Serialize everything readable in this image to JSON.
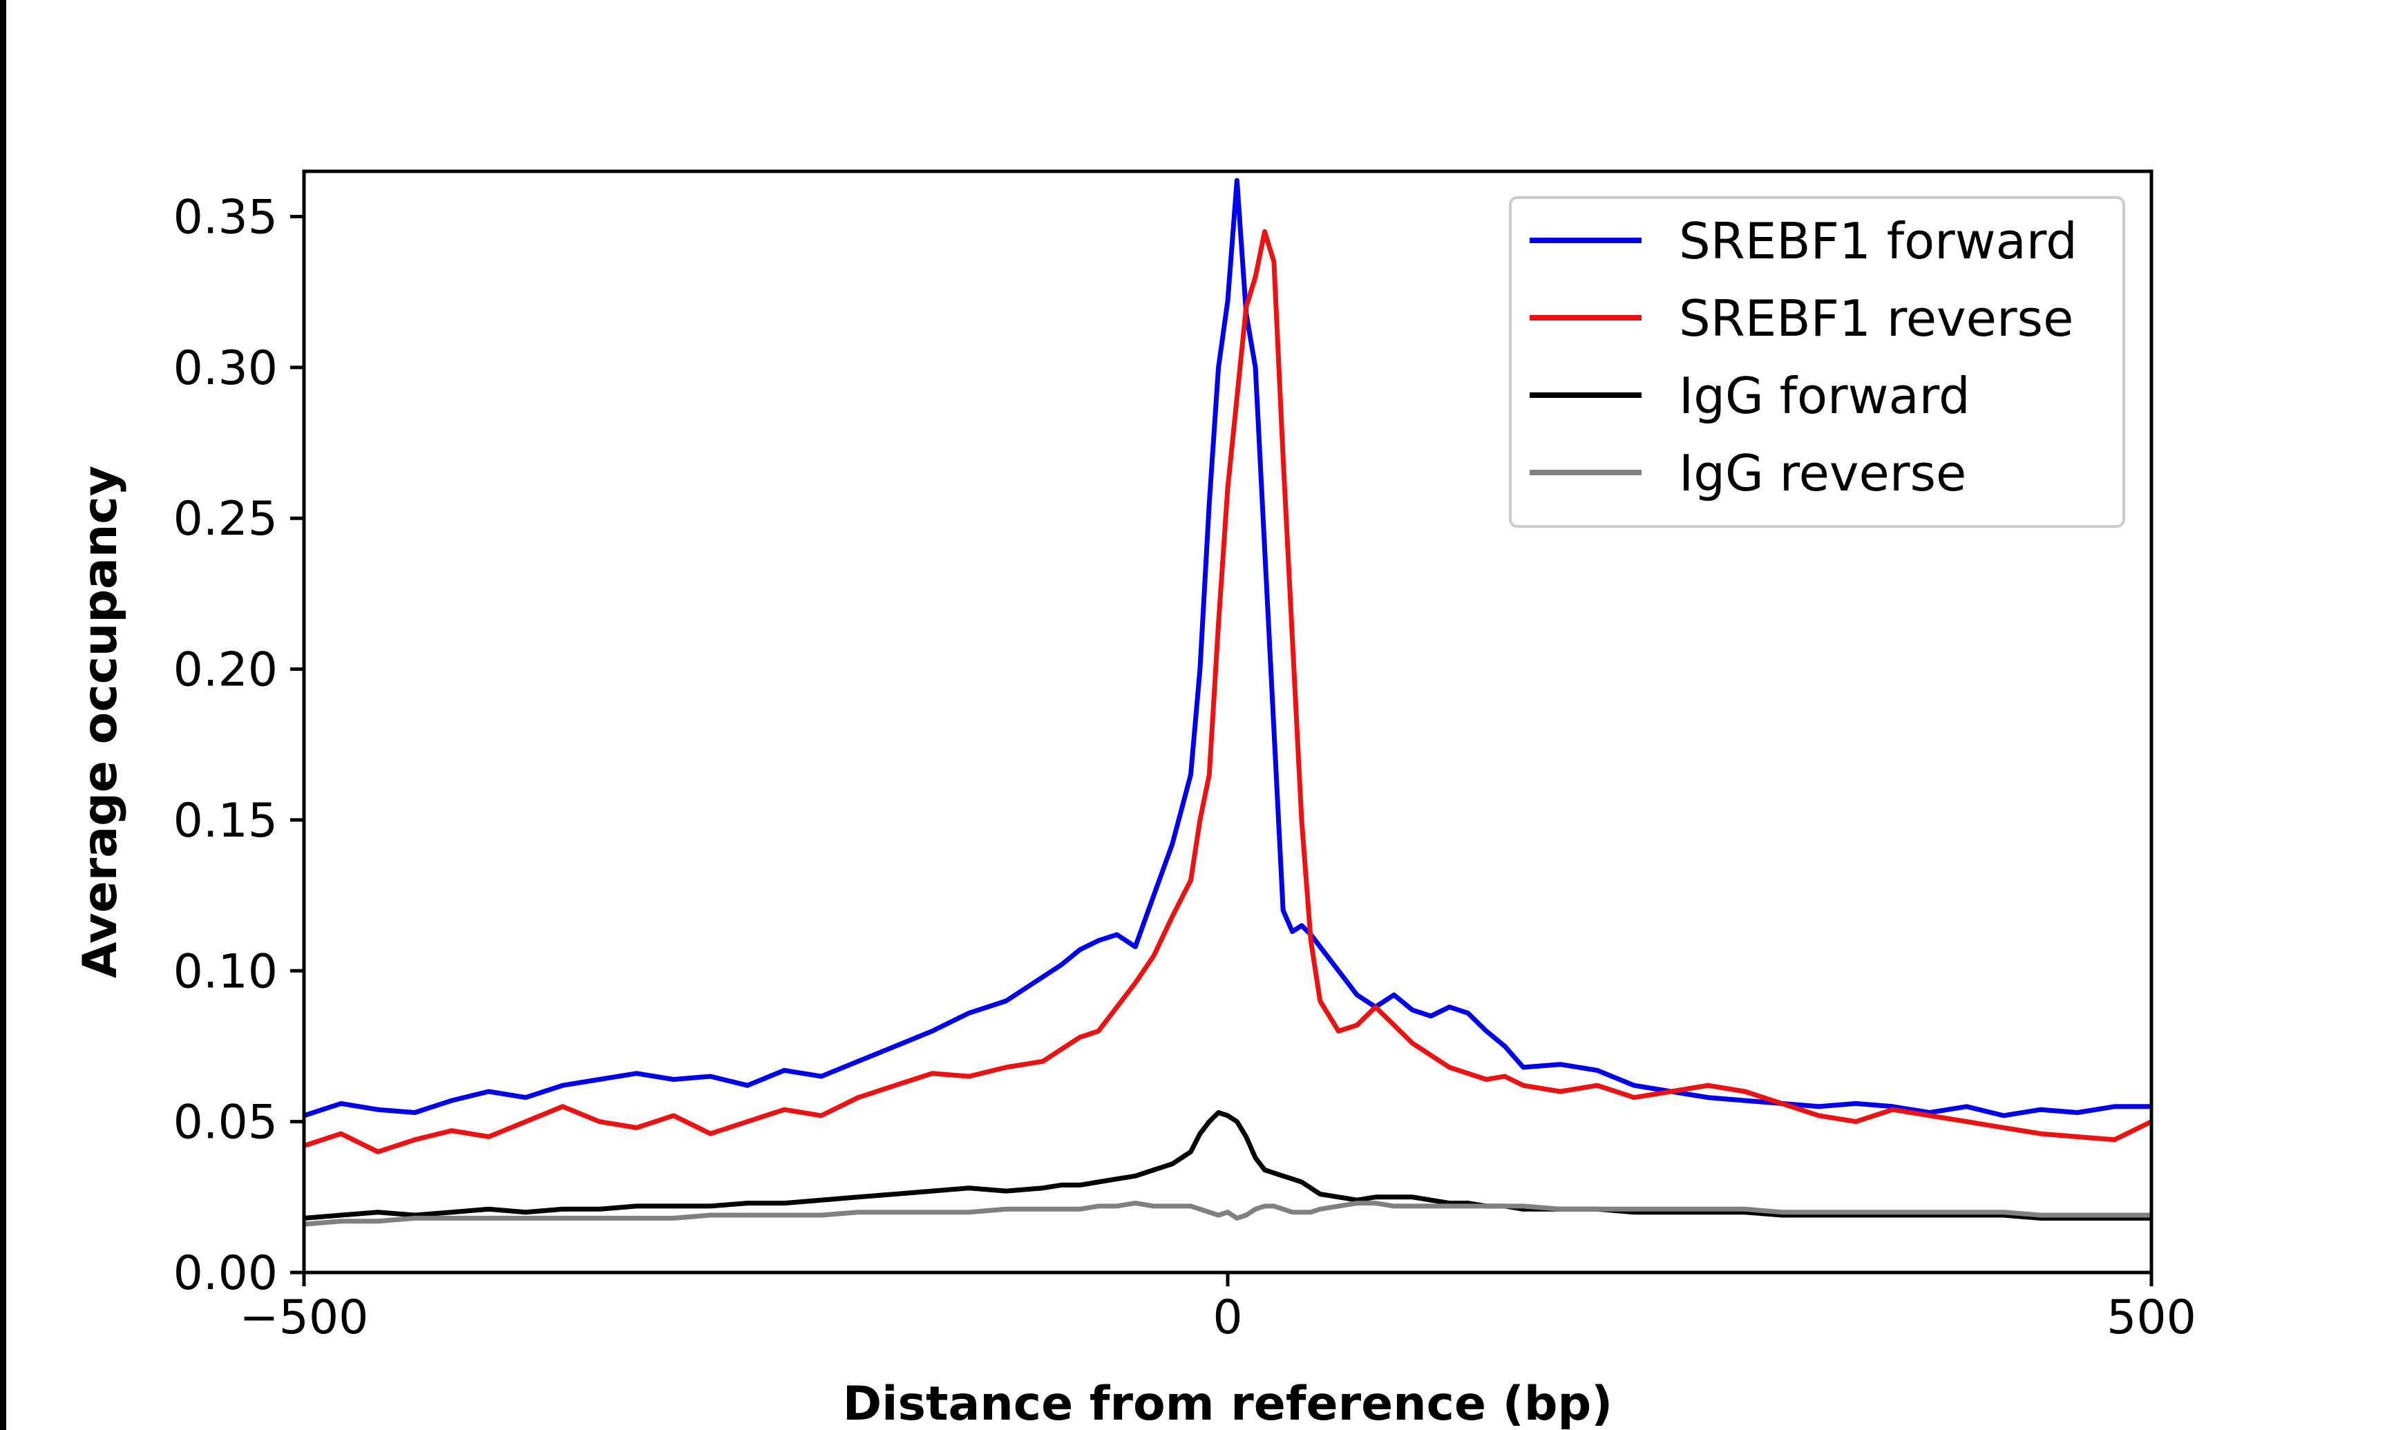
{
  "chart_data": {
    "type": "line",
    "title": "",
    "xlabel": "Distance from reference (bp)",
    "ylabel": "Average occupancy",
    "xlim": [
      -500,
      500
    ],
    "ylim": [
      0.0,
      0.365
    ],
    "xticks": [
      -500,
      0,
      500
    ],
    "xtick_labels": [
      "−500",
      "0",
      "500"
    ],
    "yticks": [
      0.0,
      0.05,
      0.1,
      0.15,
      0.2,
      0.25,
      0.3,
      0.35
    ],
    "ytick_labels": [
      "0.00",
      "0.05",
      "0.10",
      "0.15",
      "0.20",
      "0.25",
      "0.30",
      "0.35"
    ],
    "grid": false,
    "legend_position": "top-right",
    "x": [
      -500,
      -480,
      -460,
      -440,
      -420,
      -400,
      -380,
      -360,
      -340,
      -320,
      -300,
      -280,
      -260,
      -240,
      -220,
      -200,
      -180,
      -160,
      -140,
      -120,
      -100,
      -90,
      -80,
      -70,
      -60,
      -50,
      -40,
      -30,
      -20,
      -15,
      -10,
      -5,
      0,
      5,
      10,
      15,
      20,
      25,
      30,
      35,
      40,
      45,
      50,
      60,
      70,
      80,
      90,
      100,
      110,
      120,
      130,
      140,
      150,
      160,
      180,
      200,
      220,
      240,
      260,
      280,
      300,
      320,
      340,
      360,
      380,
      400,
      420,
      440,
      460,
      480,
      500
    ],
    "series": [
      {
        "name": "SREBF1 forward",
        "color": "#0000ee",
        "values": [
          0.052,
          0.056,
          0.054,
          0.053,
          0.057,
          0.06,
          0.058,
          0.062,
          0.064,
          0.066,
          0.064,
          0.065,
          0.062,
          0.067,
          0.065,
          0.07,
          0.075,
          0.08,
          0.086,
          0.09,
          0.098,
          0.102,
          0.107,
          0.11,
          0.112,
          0.108,
          0.125,
          0.142,
          0.165,
          0.2,
          0.255,
          0.3,
          0.322,
          0.362,
          0.318,
          0.3,
          0.24,
          0.18,
          0.12,
          0.113,
          0.115,
          0.112,
          0.108,
          0.1,
          0.092,
          0.088,
          0.092,
          0.087,
          0.085,
          0.088,
          0.086,
          0.08,
          0.075,
          0.068,
          0.069,
          0.067,
          0.062,
          0.06,
          0.058,
          0.057,
          0.056,
          0.055,
          0.056,
          0.055,
          0.053,
          0.055,
          0.052,
          0.054,
          0.053,
          0.055,
          0.055
        ]
      },
      {
        "name": "SREBF1 reverse",
        "color": "#ee1111",
        "values": [
          0.042,
          0.046,
          0.04,
          0.044,
          0.047,
          0.045,
          0.05,
          0.055,
          0.05,
          0.048,
          0.052,
          0.046,
          0.05,
          0.054,
          0.052,
          0.058,
          0.062,
          0.066,
          0.065,
          0.068,
          0.07,
          0.074,
          0.078,
          0.08,
          0.088,
          0.096,
          0.105,
          0.118,
          0.13,
          0.15,
          0.165,
          0.215,
          0.26,
          0.29,
          0.32,
          0.33,
          0.345,
          0.335,
          0.27,
          0.21,
          0.15,
          0.11,
          0.09,
          0.08,
          0.082,
          0.088,
          0.082,
          0.076,
          0.072,
          0.068,
          0.066,
          0.064,
          0.065,
          0.062,
          0.06,
          0.062,
          0.058,
          0.06,
          0.062,
          0.06,
          0.056,
          0.052,
          0.05,
          0.054,
          0.052,
          0.05,
          0.048,
          0.046,
          0.045,
          0.044,
          0.05
        ]
      },
      {
        "name": "IgG forward",
        "color": "#000000",
        "values": [
          0.018,
          0.019,
          0.02,
          0.019,
          0.02,
          0.021,
          0.02,
          0.021,
          0.021,
          0.022,
          0.022,
          0.022,
          0.023,
          0.023,
          0.024,
          0.025,
          0.026,
          0.027,
          0.028,
          0.027,
          0.028,
          0.029,
          0.029,
          0.03,
          0.031,
          0.032,
          0.034,
          0.036,
          0.04,
          0.046,
          0.05,
          0.053,
          0.052,
          0.05,
          0.045,
          0.038,
          0.034,
          0.033,
          0.032,
          0.031,
          0.03,
          0.028,
          0.026,
          0.025,
          0.024,
          0.025,
          0.025,
          0.025,
          0.024,
          0.023,
          0.023,
          0.022,
          0.022,
          0.021,
          0.021,
          0.021,
          0.02,
          0.02,
          0.02,
          0.02,
          0.019,
          0.019,
          0.019,
          0.019,
          0.019,
          0.019,
          0.019,
          0.018,
          0.018,
          0.018,
          0.018
        ]
      },
      {
        "name": "IgG reverse",
        "color": "#808080",
        "values": [
          0.016,
          0.017,
          0.017,
          0.018,
          0.018,
          0.018,
          0.018,
          0.018,
          0.018,
          0.018,
          0.018,
          0.019,
          0.019,
          0.019,
          0.019,
          0.02,
          0.02,
          0.02,
          0.02,
          0.021,
          0.021,
          0.021,
          0.021,
          0.022,
          0.022,
          0.023,
          0.022,
          0.022,
          0.022,
          0.021,
          0.02,
          0.019,
          0.02,
          0.018,
          0.019,
          0.021,
          0.022,
          0.022,
          0.021,
          0.02,
          0.02,
          0.02,
          0.021,
          0.022,
          0.023,
          0.023,
          0.022,
          0.022,
          0.022,
          0.022,
          0.022,
          0.022,
          0.022,
          0.022,
          0.021,
          0.021,
          0.021,
          0.021,
          0.021,
          0.021,
          0.02,
          0.02,
          0.02,
          0.02,
          0.02,
          0.02,
          0.02,
          0.019,
          0.019,
          0.019,
          0.019
        ]
      }
    ]
  }
}
